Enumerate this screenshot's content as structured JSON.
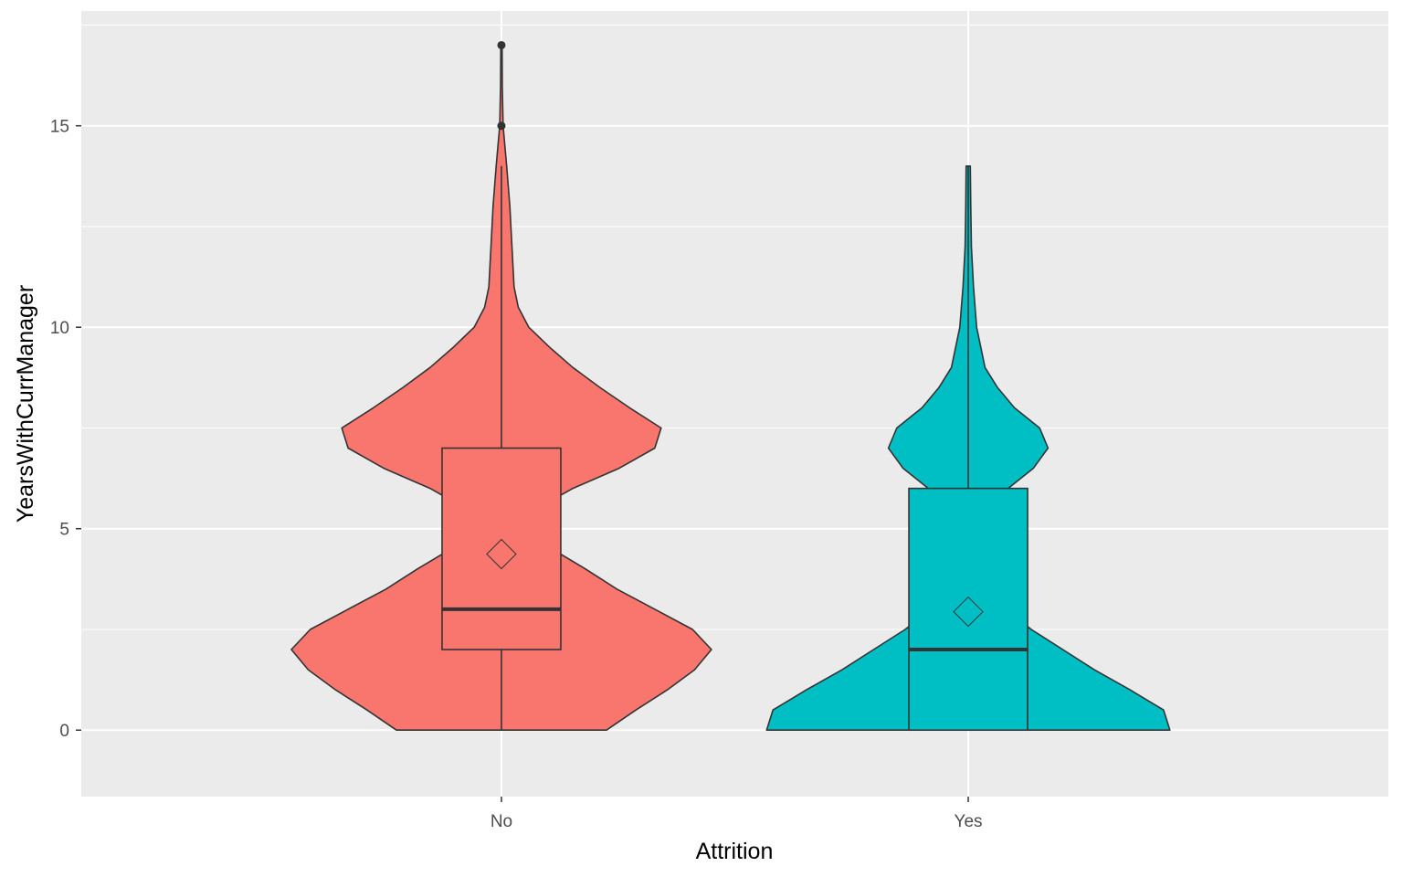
{
  "chart_data": {
    "type": "violin",
    "title": "",
    "xlabel": "Attrition",
    "ylabel": "YearsWithCurrManager",
    "categories": [
      "No",
      "Yes"
    ],
    "ylim": [
      -1.65,
      17.85
    ],
    "yticks": [
      0,
      5,
      10,
      15
    ],
    "grid": true,
    "legend": "none",
    "series": [
      {
        "category": "No",
        "color": "#F8766D",
        "density_profile": [
          [
            0,
            0.5
          ],
          [
            0.5,
            0.64
          ],
          [
            1,
            0.79
          ],
          [
            1.5,
            0.92
          ],
          [
            2,
            1.0
          ],
          [
            2.5,
            0.91
          ],
          [
            3,
            0.73
          ],
          [
            3.5,
            0.55
          ],
          [
            4,
            0.4
          ],
          [
            4.5,
            0.24
          ],
          [
            5,
            0.12
          ],
          [
            5.5,
            0.17
          ],
          [
            6,
            0.34
          ],
          [
            6.5,
            0.56
          ],
          [
            7,
            0.73
          ],
          [
            7.5,
            0.76
          ],
          [
            8,
            0.61
          ],
          [
            8.5,
            0.47
          ],
          [
            9,
            0.34
          ],
          [
            9.5,
            0.23
          ],
          [
            10,
            0.13
          ],
          [
            10.5,
            0.08
          ],
          [
            11,
            0.06
          ],
          [
            12,
            0.05
          ],
          [
            13,
            0.04
          ],
          [
            14,
            0.025
          ],
          [
            15,
            0.008
          ],
          [
            16,
            0.004
          ],
          [
            17,
            0.003
          ]
        ],
        "box": {
          "lower_whisker": 0,
          "q1": 2,
          "median": 3,
          "q3": 7,
          "upper_whisker": 14
        },
        "outliers": [
          15,
          17
        ],
        "mean": 4.37
      },
      {
        "category": "Yes",
        "color": "#00BFC4",
        "density_profile": [
          [
            0,
            0.96
          ],
          [
            0.5,
            0.93
          ],
          [
            1,
            0.77
          ],
          [
            1.5,
            0.6
          ],
          [
            2,
            0.45
          ],
          [
            2.5,
            0.3
          ],
          [
            3,
            0.18
          ],
          [
            3.5,
            0.1
          ],
          [
            4,
            0.05
          ],
          [
            4.5,
            0.03
          ],
          [
            5,
            0.04
          ],
          [
            5.5,
            0.09
          ],
          [
            6,
            0.19
          ],
          [
            6.5,
            0.31
          ],
          [
            7,
            0.38
          ],
          [
            7.5,
            0.34
          ],
          [
            8,
            0.22
          ],
          [
            8.5,
            0.14
          ],
          [
            9,
            0.08
          ],
          [
            10,
            0.04
          ],
          [
            11,
            0.025
          ],
          [
            12,
            0.015
          ],
          [
            13,
            0.012
          ],
          [
            14,
            0.01
          ]
        ],
        "box": {
          "lower_whisker": 0,
          "q1": 0,
          "median": 2,
          "q3": 6,
          "upper_whisker": 14
        },
        "outliers": [],
        "mean": 2.94
      }
    ]
  }
}
